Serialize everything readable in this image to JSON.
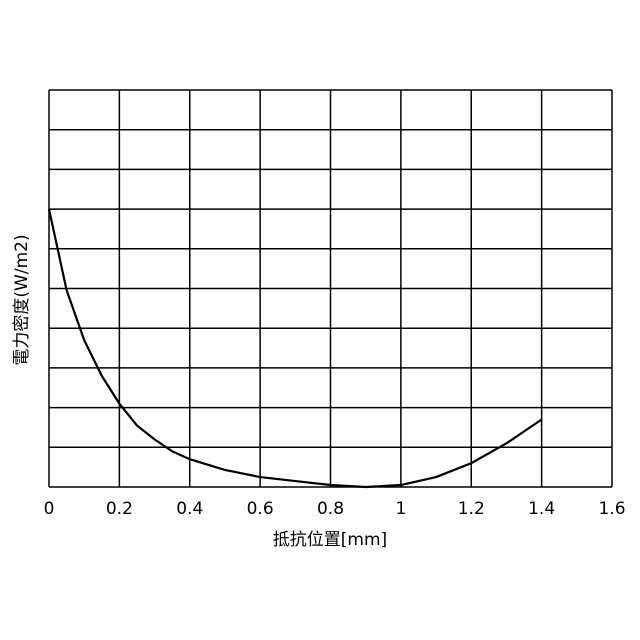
{
  "chart_data": {
    "type": "line",
    "x_label": "抵抗位置[mm]",
    "y_label": "電力密度(W/m2)",
    "x": [
      0,
      0.05,
      0.1,
      0.15,
      0.2,
      0.25,
      0.3,
      0.35,
      0.4,
      0.5,
      0.6,
      0.7,
      0.8,
      0.9,
      1.0,
      1.1,
      1.2,
      1.3,
      1.4
    ],
    "series": [
      {
        "color": "#000000",
        "values": [
          7.0,
          4.96,
          3.7,
          2.8,
          2.1,
          1.55,
          1.2,
          0.9,
          0.7,
          0.43,
          0.25,
          0.15,
          0.05,
          0.0,
          0.05,
          0.25,
          0.6,
          1.1,
          1.7
        ]
      }
    ],
    "xlim": [
      0,
      1.6
    ],
    "xticks": [
      0,
      0.2,
      0.4,
      0.6,
      0.8,
      1,
      1.2,
      1.4,
      1.6
    ],
    "ylim": [
      0,
      10
    ],
    "yticks": [
      0,
      1,
      2,
      3,
      4,
      5,
      6,
      7,
      8,
      9,
      10
    ],
    "ytick_labels": false,
    "grid": true
  }
}
